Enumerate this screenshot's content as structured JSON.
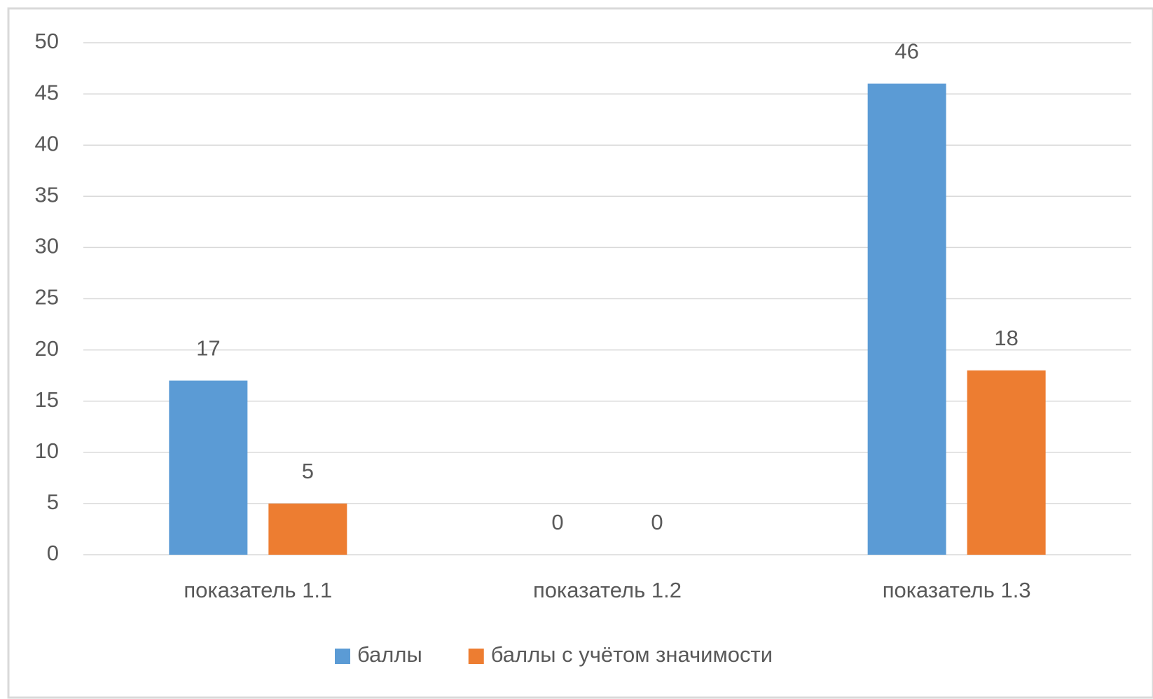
{
  "chart_data": {
    "type": "bar",
    "categories": [
      "показатель 1.1",
      "показатель 1.2",
      "показатель 1.3"
    ],
    "series": [
      {
        "name": "баллы",
        "color": "#5b9bd5",
        "values": [
          17,
          0,
          46
        ]
      },
      {
        "name": "баллы с учётом значимости",
        "color": "#ed7d31",
        "values": [
          5,
          0,
          18
        ]
      }
    ],
    "ylim": [
      0,
      50
    ],
    "yticks": [
      0,
      5,
      10,
      15,
      20,
      25,
      30,
      35,
      40,
      45,
      50
    ],
    "grid": true,
    "legend": "bottom"
  }
}
